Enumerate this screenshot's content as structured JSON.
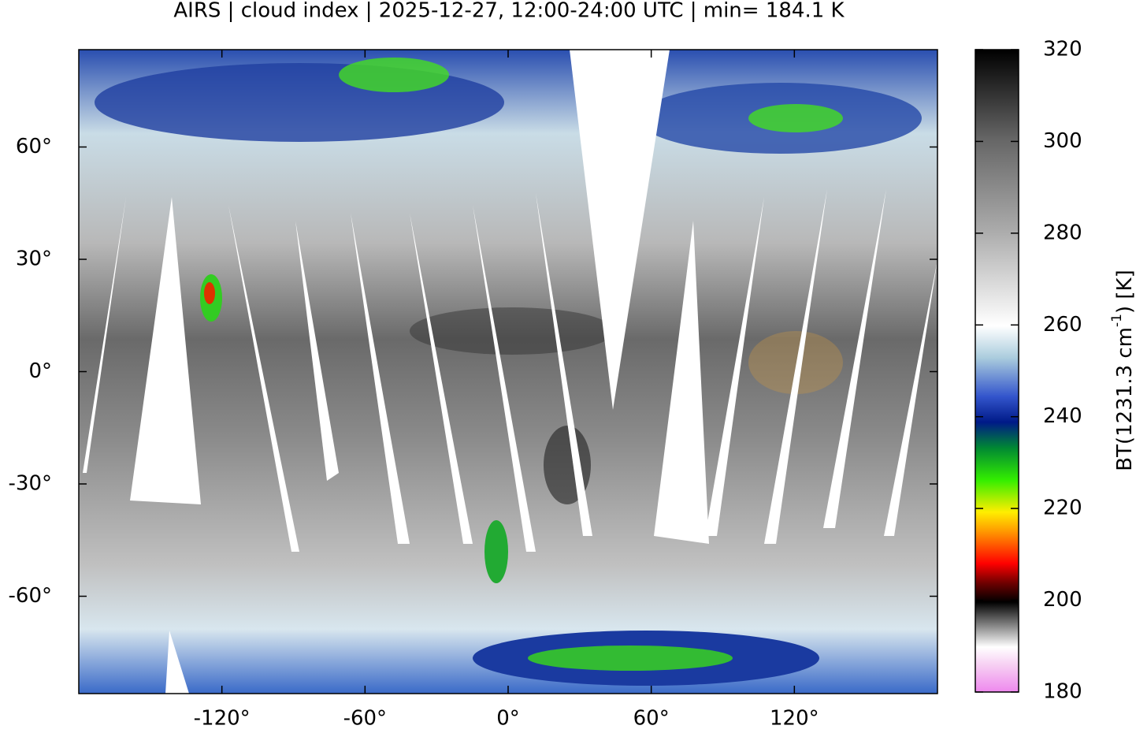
{
  "title": "AIRS | cloud index | 2025-12-27, 12:00-24:00 UTC | min= 184.1 K",
  "lon_axis": {
    "range": [
      -180,
      180
    ],
    "ticks": [
      {
        "value": -120,
        "label": "-120°"
      },
      {
        "value": -60,
        "label": "-60°"
      },
      {
        "value": 0,
        "label": "0°"
      },
      {
        "value": 60,
        "label": "60°"
      },
      {
        "value": 120,
        "label": "120°"
      }
    ]
  },
  "lat_axis": {
    "range": [
      -86,
      86
    ],
    "ticks": [
      {
        "value": 60,
        "label": "60°"
      },
      {
        "value": 30,
        "label": "30°"
      },
      {
        "value": 0,
        "label": "0°"
      },
      {
        "value": -30,
        "label": "-30°"
      },
      {
        "value": -60,
        "label": "-60°"
      }
    ]
  },
  "colorbar": {
    "range": [
      180,
      320
    ],
    "ticks": [
      320,
      300,
      280,
      260,
      240,
      220,
      200,
      180
    ],
    "label": {
      "before": "BT(1231.3 cm",
      "sup": "-1",
      "after": ") [K]"
    }
  }
}
